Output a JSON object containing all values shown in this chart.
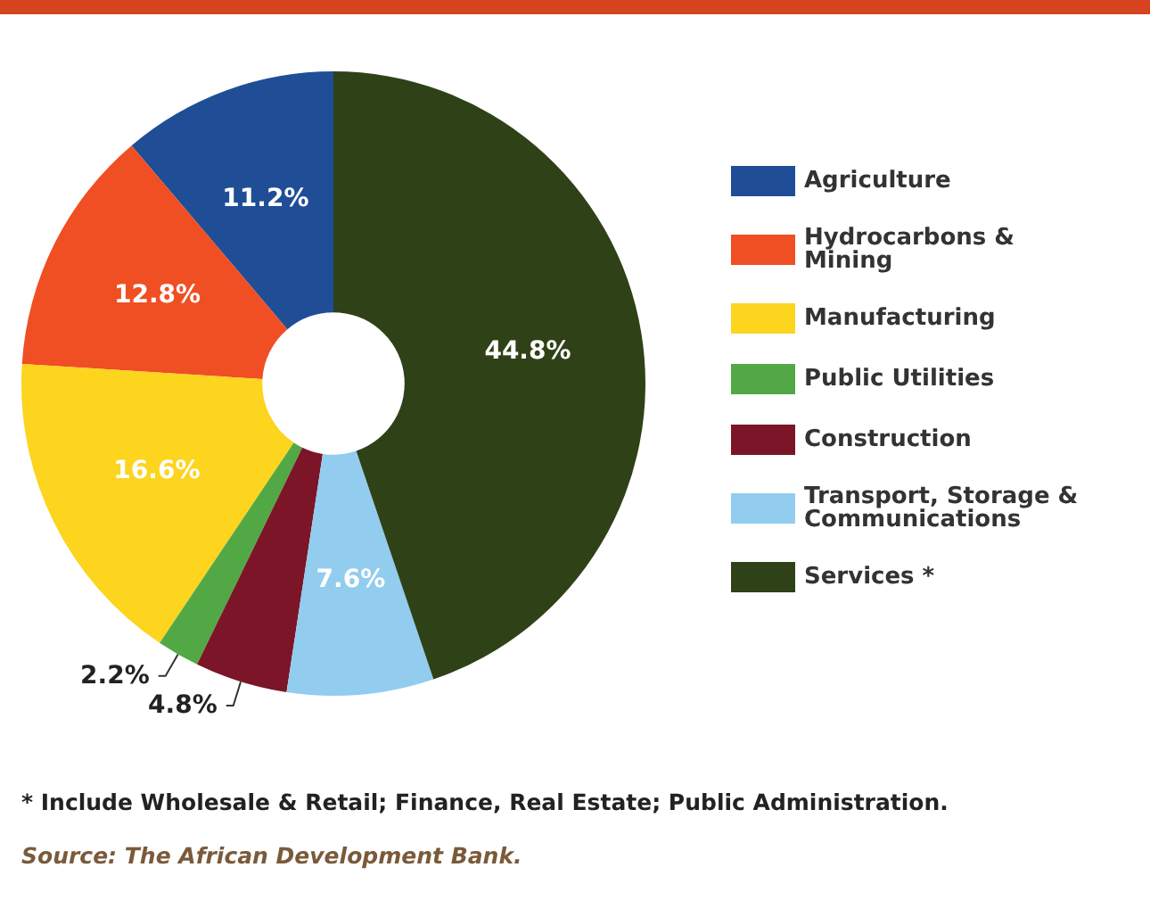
{
  "chart_data": {
    "type": "donut",
    "categories": [
      "Agriculture",
      "Hydrocarbons & Mining",
      "Manufacturing",
      "Public Utilities",
      "Construction",
      "Transport, Storage & Communications",
      "Services *"
    ],
    "values": [
      11.2,
      12.8,
      16.6,
      2.2,
      4.8,
      7.6,
      44.8
    ],
    "value_labels": [
      "11.2%",
      "12.8%",
      "16.6%",
      "2.2%",
      "4.8%",
      "7.6%",
      "44.8%"
    ],
    "colors": [
      "#1f4e96",
      "#f04e23",
      "#fdd41e",
      "#52a845",
      "#7b1527",
      "#92ccef",
      "#2f4117"
    ],
    "legend": "right",
    "annotations": [
      "* Include Wholesale & Retail; Finance, Real Estate; Public Administration.",
      "Source: The African Development Bank."
    ]
  }
}
